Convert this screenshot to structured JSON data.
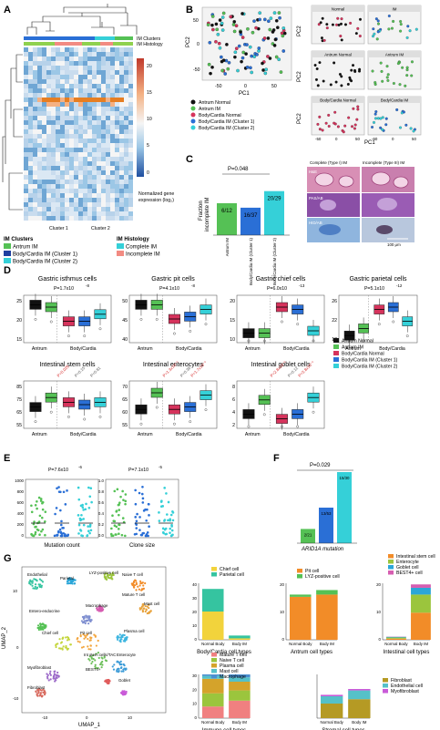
{
  "figure": {
    "panels": [
      "A",
      "B",
      "C",
      "D",
      "E",
      "F",
      "G"
    ],
    "colors": {
      "antrum_normal": "#111111",
      "antrum_im": "#55c155",
      "body_normal": "#d6335c",
      "body_im1": "#2a6fd6",
      "body_im2": "#35d0d8",
      "complete_im": "#8fd14f",
      "incomplete_im": "#f28b82"
    }
  },
  "A": {
    "legend_top": [
      "IM Clusters",
      "IM Histology"
    ],
    "cluster_labels": [
      "Cluster 1",
      "Cluster 2"
    ],
    "scale_ticks": [
      "20",
      "15",
      "10",
      "5",
      "0"
    ],
    "scale_title": [
      "Normalized gene",
      "expression (log₂)"
    ],
    "legend_clusters_title": "IM Clusters",
    "legend_clusters": [
      "Antrum IM",
      "Body/Cardia IM (Cluster 1)",
      "Body/Cardia IM (Cluster 2)"
    ],
    "legend_hist_title": "IM Histology",
    "legend_hist": [
      "Complete IM",
      "Incomplete IM"
    ]
  },
  "B": {
    "xlabel": "PC1",
    "ylabel": "PC2",
    "xticks": [
      "-50",
      "0",
      "50"
    ],
    "yticks": [
      "50",
      "0",
      "-50"
    ],
    "legend": [
      "Antrum Normal",
      "Antrum IM",
      "Body/Cardia Normal",
      "Body/Cardia IM (Cluster 1)",
      "Body/Cardia IM (Cluster 2)"
    ],
    "facets": [
      "Normal",
      "IM",
      "Antrum Normal",
      "Antrum IM",
      "Body/Cardia Normal",
      "Body/Cardia IM"
    ]
  },
  "C": {
    "ylabel": [
      "Fraction",
      "incomplete IM"
    ],
    "pvalue": "P=0.048",
    "bars": [
      {
        "label": "Antrum IM",
        "count": "6/12",
        "value": 0.5
      },
      {
        "label": "Body/Cardia IM (Cluster 1)",
        "count": "16/37",
        "value": 0.43
      },
      {
        "label": "Body/Cardia IM (Cluster 2)",
        "count": "20/29",
        "value": 0.69
      }
    ],
    "hist_headers": [
      "Complete (Type I) IM",
      "Incomplete (Type III) IM"
    ],
    "stains": [
      "H&E",
      "PAS/AB",
      "HID/AB"
    ],
    "scalebar": "100 μm"
  },
  "D": {
    "group_labels": [
      "Antrum",
      "Body/Cardia"
    ],
    "legend": [
      "Antrum Normal",
      "Antrum IM",
      "Body/Cardia Normal",
      "Body/Cardia IM (Cluster 1)",
      "Body/Cardia IM (Cluster 2)"
    ],
    "plots": [
      {
        "title": "Gastric isthmus cells",
        "p": "P=1.7x10",
        "exp": "-8",
        "yticks": [
          "25",
          "20",
          "15"
        ]
      },
      {
        "title": "Gastric pit cells",
        "p": "P=4.1x10",
        "exp": "-8",
        "yticks": [
          "50",
          "45",
          "40"
        ]
      },
      {
        "title": "Gastric chief cells",
        "p": "P=6.0x10",
        "exp": "-13",
        "yticks": [
          "20",
          "15",
          "10"
        ]
      },
      {
        "title": "Gastric parietal cells",
        "p": "P=5.1x10",
        "exp": "-12",
        "yticks": [
          "26",
          "22",
          "18"
        ]
      },
      {
        "title": "Intestinal stem cells",
        "yticks": [
          "85",
          "75",
          "65",
          "55"
        ],
        "red": [
          "P=0.025"
        ],
        "grey": [
          "P=0.15",
          "P=0.81"
        ]
      },
      {
        "title": "Intestinal enterocytes",
        "yticks": [
          "70",
          "65",
          "60",
          "55"
        ],
        "red": [
          "P=1.3x10⁻⁵",
          "P=1.7x10⁻⁵"
        ],
        "grey": [
          "P=0.39"
        ]
      },
      {
        "title": "Intestinal goblet cells",
        "yticks": [
          "8",
          "6",
          "4",
          "2"
        ],
        "red": [
          "P=2.8x10⁻⁶",
          "P=3.8x10⁻⁵"
        ],
        "grey": [
          "P=0.12"
        ]
      }
    ]
  },
  "E": {
    "plots": [
      {
        "xlabel": "Mutation count",
        "p": "P=7.6x10",
        "exp": "-6",
        "yticks": [
          "1000",
          "800",
          "600",
          "400",
          "200",
          "0"
        ]
      },
      {
        "xlabel": "Clone size",
        "p": "P=7.1x10",
        "exp": "-5",
        "yticks": [
          "1.0",
          "0.8",
          "0.6",
          "0.4",
          "0.2",
          "0.0"
        ]
      }
    ]
  },
  "F": {
    "pvalue": "P=0.029",
    "xlabel": "ARID1A mutation",
    "bars": [
      {
        "count": "2/21",
        "value": 0.1
      },
      {
        "count": "13/53",
        "value": 0.25
      },
      {
        "count": "15/30",
        "value": 0.5
      }
    ]
  },
  "G": {
    "umap_xlabel": "UMAP_1",
    "umap_ylabel": "UMAP_2",
    "umap_xticks": [
      "-10",
      "0",
      "10"
    ],
    "umap_yticks": [
      "10",
      "0",
      "-10"
    ],
    "clusters": [
      "Endothelial",
      "Parietal",
      "LYZ-positive cell",
      "Naive T cell",
      "Mature T cell",
      "Mast cell",
      "Entero-endocrine",
      "Macrophage",
      "Chief cell",
      "Pit cell",
      "Plasma cell",
      "Int stem cells/TAC",
      "Enterocyte",
      "Myofibroblast",
      "BEST4+",
      "Goblet",
      "Fibroblast"
    ],
    "bar_xlabels": [
      "Normal Body",
      "Body IM"
    ],
    "charts": [
      {
        "title": "Body/Cardia cell types",
        "legend": [
          "Chief cell",
          "Parietal cell"
        ],
        "yticks": [
          "40",
          "30",
          "20",
          "10",
          "0"
        ]
      },
      {
        "title": "Antrum cell types",
        "legend": [
          "Pit cell",
          "LYZ-positive cell"
        ],
        "yticks": [
          "20",
          "10",
          "0"
        ]
      },
      {
        "title": "Intestinal cell types",
        "legend": [
          "Intestinal stem cell",
          "Enterocyte",
          "Goblet cell",
          "BEST4+ cell"
        ],
        "yticks": [
          "20",
          "10",
          "0"
        ]
      },
      {
        "title": "Immune cell types",
        "legend": [
          "Mature T cell",
          "Naive T cell",
          "Plasma cell",
          "Mast cell",
          "Macrophage"
        ],
        "yticks": [
          "30",
          "20",
          "10",
          "0"
        ]
      },
      {
        "title": "Stromal cell types",
        "legend": [
          "Fibroblast",
          "Endothelial cell",
          "Myofibroblast"
        ],
        "yticks": []
      }
    ]
  },
  "chart_data": [
    {
      "type": "bar",
      "panel": "C",
      "categories": [
        "Antrum IM",
        "Body/Cardia IM (Cluster 1)",
        "Body/Cardia IM (Cluster 2)"
      ],
      "values": [
        0.5,
        0.43,
        0.69
      ],
      "ylabel": "Fraction incomplete IM"
    },
    {
      "type": "bar",
      "panel": "F",
      "categories": [
        "2/21",
        "13/53",
        "15/30"
      ],
      "values": [
        0.1,
        0.25,
        0.5
      ],
      "xlabel": "ARID1A mutation"
    },
    {
      "type": "bar",
      "panel": "G",
      "title": "Body/Cardia cell types",
      "categories": [
        "Normal Body",
        "Body IM"
      ],
      "series": [
        {
          "name": "Chief cell",
          "values": [
            20,
            1
          ]
        },
        {
          "name": "Parietal cell",
          "values": [
            16,
            2
          ]
        }
      ],
      "ylim": [
        0,
        40
      ]
    },
    {
      "type": "bar",
      "panel": "G",
      "title": "Antrum cell types",
      "categories": [
        "Normal Body",
        "Body IM"
      ],
      "series": [
        {
          "name": "Pit cell",
          "values": [
            19,
            20
          ]
        },
        {
          "name": "LYZ-positive cell",
          "values": [
            1,
            2
          ]
        }
      ]
    },
    {
      "type": "bar",
      "panel": "G",
      "title": "Intestinal cell types",
      "categories": [
        "Normal Body",
        "Body IM"
      ],
      "series": [
        {
          "name": "Intestinal stem cell",
          "values": [
            0.5,
            12
          ]
        },
        {
          "name": "Enterocyte",
          "values": [
            0.5,
            8
          ]
        },
        {
          "name": "Goblet cell",
          "values": [
            0.3,
            3
          ]
        },
        {
          "name": "BEST4+ cell",
          "values": [
            0.1,
            1.5
          ]
        }
      ]
    },
    {
      "type": "bar",
      "panel": "G",
      "title": "Immune cell types",
      "categories": [
        "Normal Body",
        "Body IM"
      ],
      "series": [
        {
          "name": "Mature T cell",
          "values": [
            8,
            12
          ]
        },
        {
          "name": "Naive T cell",
          "values": [
            9,
            7
          ]
        },
        {
          "name": "Plasma cell",
          "values": [
            10,
            6
          ]
        },
        {
          "name": "Mast cell",
          "values": [
            2,
            3
          ]
        },
        {
          "name": "Macrophage",
          "values": [
            1,
            2
          ]
        }
      ]
    },
    {
      "type": "bar",
      "panel": "G",
      "title": "Stromal cell types",
      "categories": [
        "Normal Body",
        "Body IM"
      ],
      "series": [
        {
          "name": "Fibroblast",
          "values": [
            10,
            13
          ]
        },
        {
          "name": "Endothelial cell",
          "values": [
            5,
            6
          ]
        },
        {
          "name": "Myofibroblast",
          "values": [
            1,
            1
          ]
        }
      ]
    }
  ]
}
